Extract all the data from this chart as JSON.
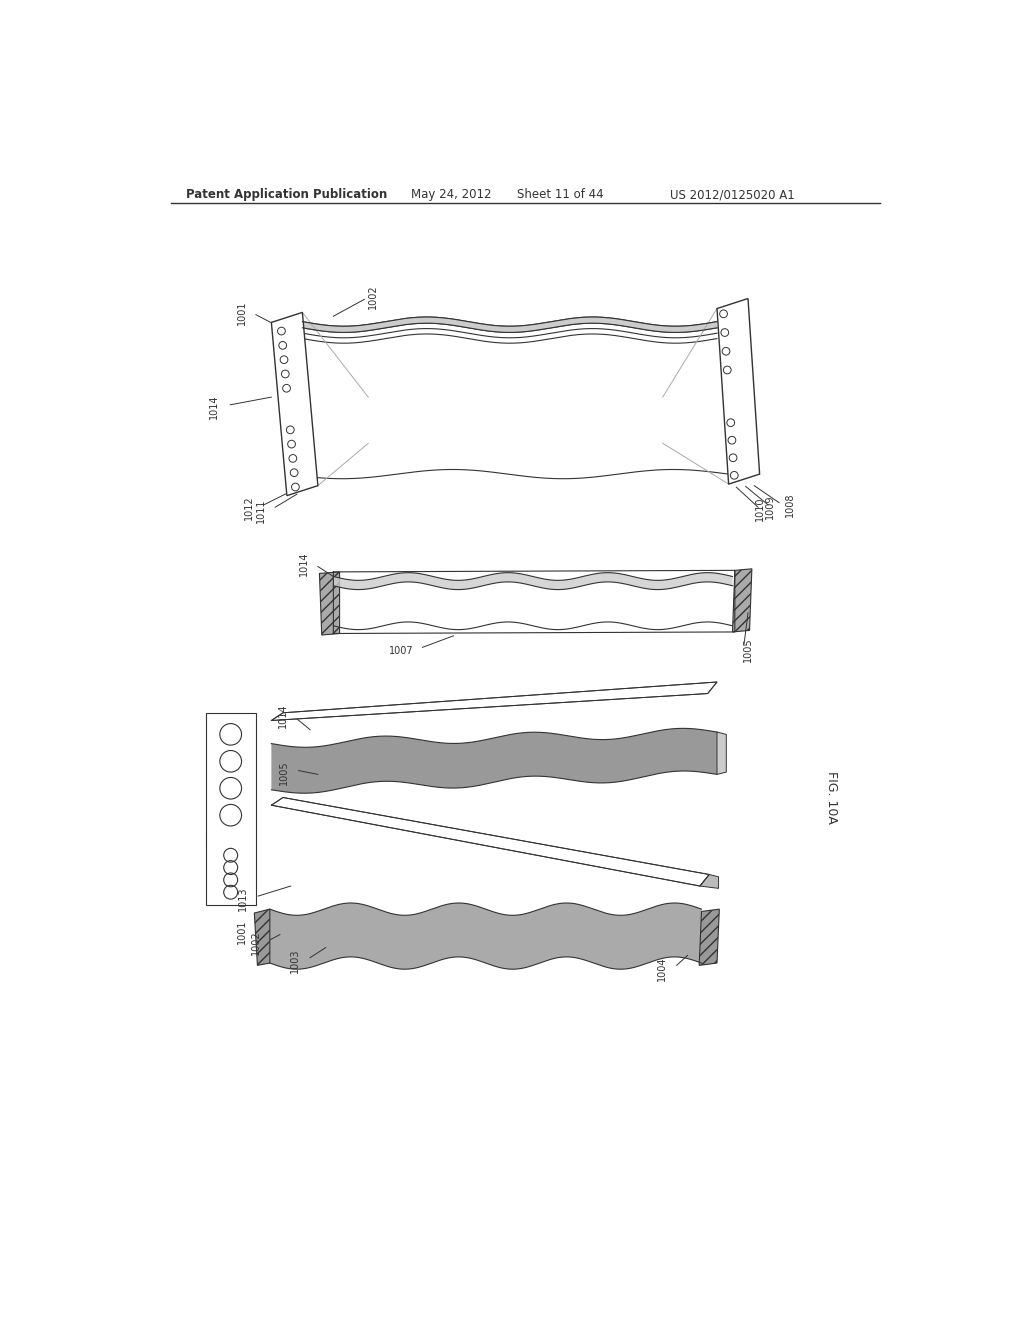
{
  "bg_color": "#ffffff",
  "header_text": "Patent Application Publication",
  "header_date": "May 24, 2012",
  "header_sheet": "Sheet 11 of 44",
  "header_patent": "US 2012/0125020 A1",
  "fig_label": "FIG. 10A",
  "lc": "#333333",
  "gray_dark": "#777777",
  "gray_med": "#aaaaaa",
  "gray_light": "#cccccc"
}
